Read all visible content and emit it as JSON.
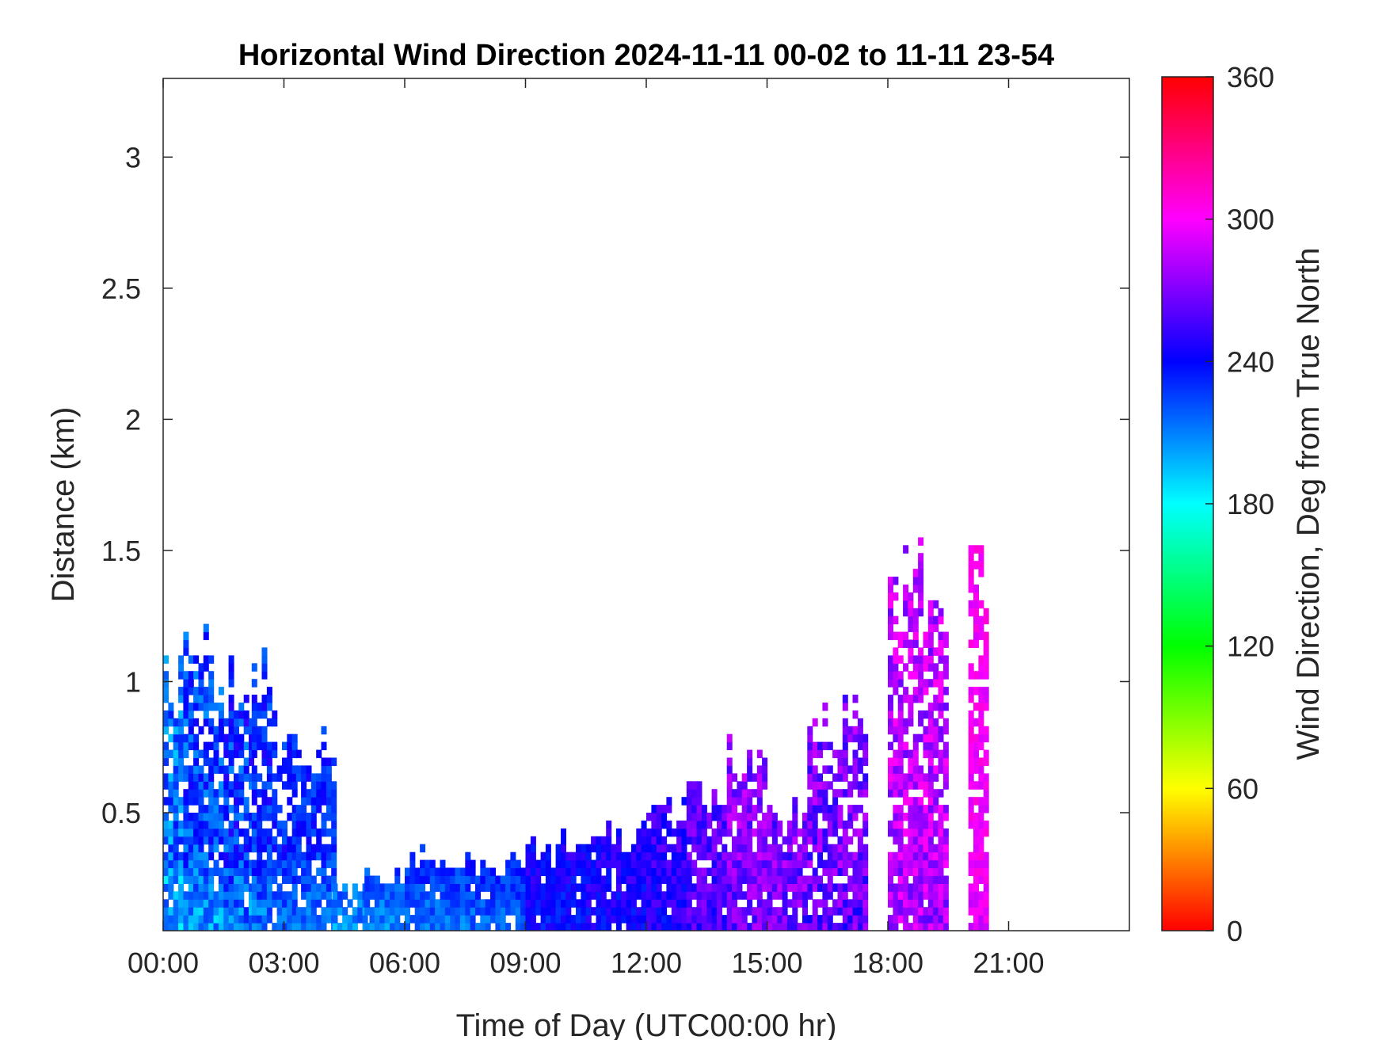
{
  "chart_data": {
    "type": "heatmap",
    "title": "Horizontal Wind Direction 2024-11-11 00-02 to 11-11 23-54",
    "xlabel": "Time of Day (UTC00:00 hr)",
    "ylabel": "Distance (km)",
    "xlim": [
      0,
      24
    ],
    "ylim": [
      0.05,
      3.3
    ],
    "x_ticks": [
      {
        "value": 0,
        "label": "00:00"
      },
      {
        "value": 3,
        "label": "03:00"
      },
      {
        "value": 6,
        "label": "06:00"
      },
      {
        "value": 9,
        "label": "09:00"
      },
      {
        "value": 12,
        "label": "12:00"
      },
      {
        "value": 15,
        "label": "15:00"
      },
      {
        "value": 18,
        "label": "18:00"
      },
      {
        "value": 21,
        "label": "21:00"
      }
    ],
    "y_ticks": [
      {
        "value": 0.5,
        "label": "0.5"
      },
      {
        "value": 1,
        "label": "1"
      },
      {
        "value": 1.5,
        "label": "1.5"
      },
      {
        "value": 2,
        "label": "2"
      },
      {
        "value": 2.5,
        "label": "2.5"
      },
      {
        "value": 3,
        "label": "3"
      }
    ],
    "colorbar": {
      "label": "Wind Direction, Deg from True North",
      "range": [
        0,
        360
      ],
      "colormap": "hsv",
      "ticks": [
        {
          "value": 0,
          "label": "0"
        },
        {
          "value": 60,
          "label": "60"
        },
        {
          "value": 120,
          "label": "120"
        },
        {
          "value": 180,
          "label": "180"
        },
        {
          "value": 240,
          "label": "240"
        },
        {
          "value": 300,
          "label": "300"
        },
        {
          "value": 360,
          "label": "360"
        }
      ]
    },
    "regions": [
      {
        "t0": 0.0,
        "t1": 0.5,
        "h": 1.08,
        "dir": 215,
        "spread": 25
      },
      {
        "t0": 0.5,
        "t1": 1.5,
        "h": 1.1,
        "dir": 225,
        "spread": 20
      },
      {
        "t0": 1.5,
        "t1": 2.2,
        "h": 1.05,
        "dir": 230,
        "spread": 22
      },
      {
        "t0": 2.2,
        "t1": 2.7,
        "h": 1.05,
        "dir": 232,
        "spread": 18
      },
      {
        "t0": 2.7,
        "t1": 3.3,
        "h": 0.85,
        "dir": 233,
        "spread": 15
      },
      {
        "t0": 3.3,
        "t1": 4.2,
        "h": 0.75,
        "dir": 232,
        "spread": 14
      },
      {
        "t0": 4.2,
        "t1": 5.0,
        "h": 0.2,
        "dir": 228,
        "spread": 15
      },
      {
        "t0": 5.0,
        "t1": 6.0,
        "h": 0.25,
        "dir": 230,
        "spread": 12
      },
      {
        "t0": 6.0,
        "t1": 7.5,
        "h": 0.33,
        "dir": 235,
        "spread": 12
      },
      {
        "t0": 7.5,
        "t1": 9.0,
        "h": 0.3,
        "dir": 238,
        "spread": 12
      },
      {
        "t0": 9.0,
        "t1": 10.5,
        "h": 0.38,
        "dir": 245,
        "spread": 12
      },
      {
        "t0": 10.5,
        "t1": 12.0,
        "h": 0.42,
        "dir": 248,
        "spread": 12
      },
      {
        "t0": 12.0,
        "t1": 13.0,
        "h": 0.5,
        "dir": 252,
        "spread": 14
      },
      {
        "t0": 13.0,
        "t1": 14.0,
        "h": 0.6,
        "dir": 262,
        "spread": 16
      },
      {
        "t0": 14.0,
        "t1": 15.0,
        "h": 0.72,
        "dir": 272,
        "spread": 18
      },
      {
        "t0": 15.0,
        "t1": 16.0,
        "h": 0.5,
        "dir": 270,
        "spread": 20
      },
      {
        "t0": 16.0,
        "t1": 17.5,
        "h": 0.9,
        "dir": 268,
        "spread": 20
      },
      {
        "t0": 18.0,
        "t1": 19.5,
        "h": 1.45,
        "dir": 285,
        "spread": 20
      },
      {
        "t0": 20.0,
        "t1": 20.5,
        "h": 1.55,
        "dir": 300,
        "spread": 10
      }
    ]
  }
}
